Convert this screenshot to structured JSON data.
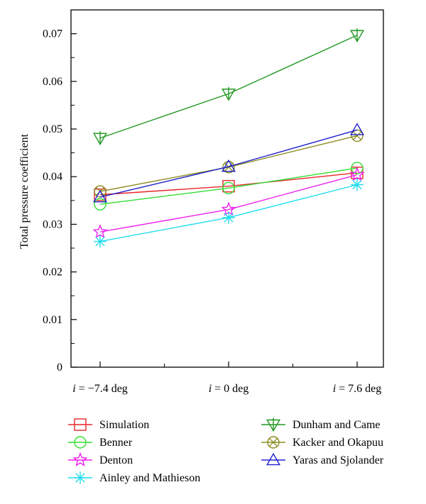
{
  "chart_data": {
    "type": "line",
    "title": "",
    "xlabel": "",
    "ylabel": "Total pressure coefficient",
    "categories": [
      "i = −7.4 deg",
      "i = 0 deg",
      "i = 7.6 deg"
    ],
    "category_parts": [
      {
        "italic": "i",
        "rest": " = −7.4 deg"
      },
      {
        "italic": "i",
        "rest": " = 0 deg"
      },
      {
        "italic": "i",
        "rest": " = 7.6 deg"
      }
    ],
    "ylim": [
      0,
      0.075
    ],
    "yticks": [
      "0",
      "0.01",
      "0.02",
      "0.03",
      "0.04",
      "0.05",
      "0.06",
      "0.07"
    ],
    "grid": false,
    "legend_position": "bottom",
    "series": [
      {
        "name": "Simulation",
        "values": [
          0.0362,
          0.038,
          0.0408
        ],
        "color": "#e8262a",
        "marker": "square"
      },
      {
        "name": "Benner",
        "values": [
          0.0342,
          0.0376,
          0.0418
        ],
        "color": "#33dd33",
        "marker": "circle"
      },
      {
        "name": "Denton",
        "values": [
          0.0284,
          0.0331,
          0.0404
        ],
        "color": "#ee22ee",
        "marker": "star"
      },
      {
        "name": "Ainley and Mathieson",
        "values": [
          0.0264,
          0.0314,
          0.0383
        ],
        "color": "#22ddee",
        "marker": "asterisk"
      },
      {
        "name": "Dunham and Came",
        "values": [
          0.0481,
          0.0574,
          0.0697
        ],
        "color": "#229922",
        "marker": "down-triangle-plus"
      },
      {
        "name": "Kacker and Okapuu",
        "values": [
          0.0369,
          0.042,
          0.0486
        ],
        "color": "#8b8b22",
        "marker": "circle-x"
      },
      {
        "name": "Yaras and Sjolander",
        "values": [
          0.0357,
          0.0421,
          0.0498
        ],
        "color": "#2222cc",
        "marker": "triangle"
      }
    ]
  }
}
